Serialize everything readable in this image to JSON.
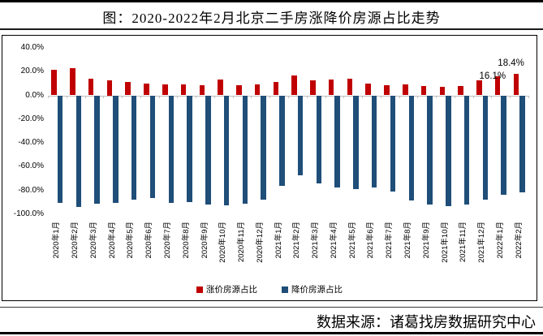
{
  "page": {
    "title": "图：2020-2022年2月北京二手房涨降价房源占比走势",
    "source": "数据来源：诸葛找房数据研究中心"
  },
  "chart_data": {
    "type": "bar",
    "title": "图：2020-2022年2月北京二手房涨降价房源占比走势",
    "unit": "%",
    "grid": false,
    "legend_position": "bottom",
    "axis_line_color": "#BFBFBF",
    "ylim": [
      -100,
      40
    ],
    "categories": [
      "2020年1月",
      "2020年2月",
      "2020年3月",
      "2020年4月",
      "2020年5月",
      "2020年6月",
      "2020年7月",
      "2020年8月",
      "2020年9月",
      "2020年10月",
      "2020年11月",
      "2020年12月",
      "2021年1月",
      "2021年2月",
      "2021年3月",
      "2021年4月",
      "2021年5月",
      "2021年6月",
      "2021年7月",
      "2021年8月",
      "2021年9月",
      "2021年10月",
      "2021年11月",
      "2021年12月",
      "2022年1月",
      "2022年2月"
    ],
    "series": [
      {
        "name": "涨价房源占比",
        "color": "#C00000",
        "values": [
          21.6,
          22.6,
          14.2,
          12.5,
          11.5,
          9.9,
          9.3,
          9.3,
          8.3,
          13.6,
          8.4,
          9.0,
          11.5,
          16.6,
          12.9,
          13.2,
          14.2,
          10.1,
          8.8,
          9.0,
          8.1,
          7.4,
          7.9,
          12.7,
          16.1,
          18.4
        ]
      },
      {
        "name": "降价房源占比",
        "color": "#1F4E79",
        "values": [
          -90.3,
          -93.7,
          -91.4,
          -90.3,
          -87.5,
          -86.4,
          -90.3,
          -89.9,
          -91.9,
          -92.6,
          -90.8,
          -87.5,
          -76.2,
          -67.5,
          -73.8,
          -77.3,
          -78.9,
          -77.7,
          -80.7,
          -88.5,
          -91.9,
          -93.3,
          -91.9,
          -87.5,
          -83.9,
          -81.6
        ]
      }
    ],
    "y_ticks": [
      {
        "label": "40.0%",
        "value": 40
      },
      {
        "label": "20.0%",
        "value": 20
      },
      {
        "label": "0.0%",
        "value": 0
      },
      {
        "label": "-20.0%",
        "value": -20
      },
      {
        "label": "-40.0%",
        "value": -40
      },
      {
        "label": "-60.0%",
        "value": -60
      },
      {
        "label": "-80.0%",
        "value": -80
      },
      {
        "label": "-100.0%",
        "value": -100
      }
    ],
    "annotations": [
      {
        "index": 24,
        "category": "2022年1月",
        "text": "16.1%"
      },
      {
        "index": 25,
        "category": "2022年2月",
        "text": "18.4%"
      }
    ]
  }
}
